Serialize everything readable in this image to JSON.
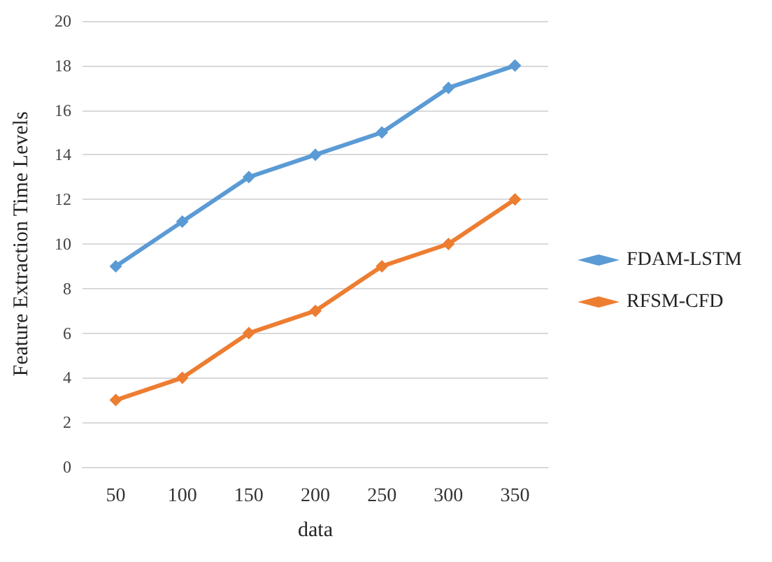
{
  "chart_data": {
    "type": "line",
    "xlabel": "data",
    "ylabel": "Feature Extraction Time Levels",
    "categories": [
      "50",
      "100",
      "150",
      "200",
      "250",
      "300",
      "350"
    ],
    "series": [
      {
        "name": "FDAM-LSTM",
        "color": "#5b9bd5",
        "values": [
          9,
          11,
          13,
          14,
          15,
          17,
          18
        ]
      },
      {
        "name": "RFSM-CFD",
        "color": "#ed7d31",
        "values": [
          3,
          4,
          6,
          7,
          9,
          10,
          12
        ]
      }
    ],
    "ylim": [
      0,
      20
    ],
    "yticks": [
      0,
      2,
      4,
      6,
      8,
      10,
      12,
      14,
      16,
      18,
      20
    ],
    "grid": "y",
    "legend": "right",
    "marker": "diamond",
    "line_style": "solid"
  }
}
